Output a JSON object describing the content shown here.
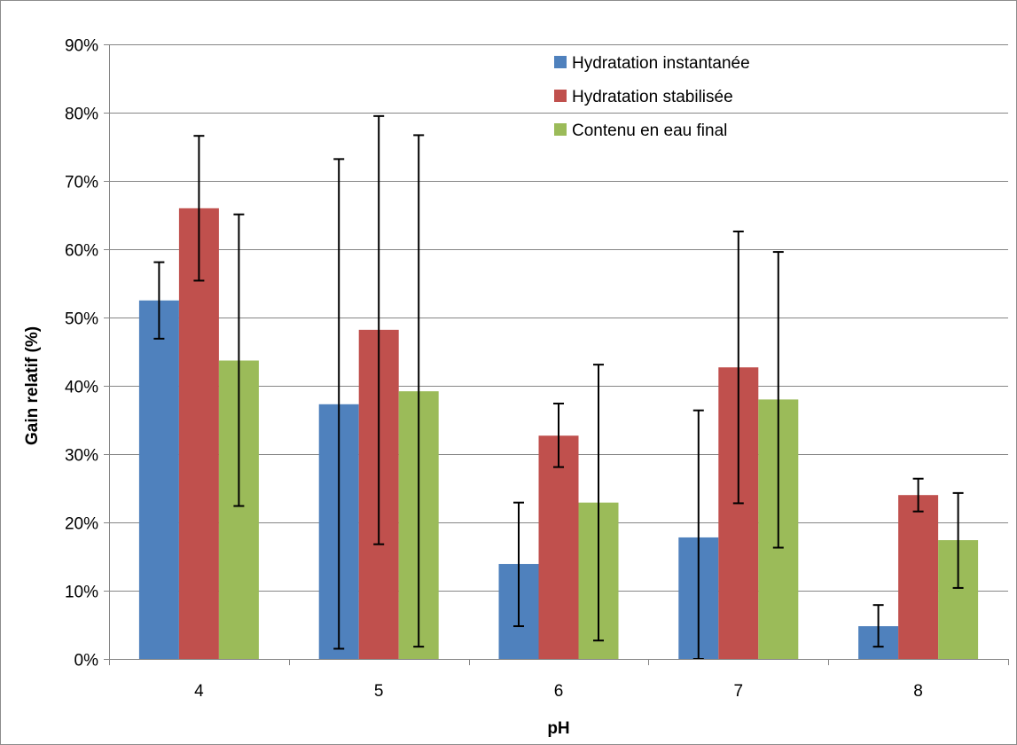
{
  "chart_data": {
    "type": "bar",
    "title": "",
    "xlabel": "pH",
    "ylabel": "Gain relatif (%)",
    "categories": [
      "4",
      "5",
      "6",
      "7",
      "8"
    ],
    "ylim": [
      0,
      0.9
    ],
    "yticks": [
      0,
      0.1,
      0.2,
      0.3,
      0.4,
      0.5,
      0.6,
      0.7,
      0.8,
      0.9
    ],
    "ytick_labels": [
      "0%",
      "10%",
      "20%",
      "30%",
      "40%",
      "50%",
      "60%",
      "70%",
      "80%",
      "90%"
    ],
    "grid": true,
    "legend_position": "top-right",
    "series": [
      {
        "name": "Hydratation instantanée",
        "color": "#4F81BD",
        "values": [
          0.525,
          0.373,
          0.139,
          0.178,
          0.048
        ],
        "error_low": [
          0.469,
          0.015,
          0.048,
          0.0,
          0.018
        ],
        "error_high": [
          0.581,
          0.732,
          0.229,
          0.364,
          0.079
        ]
      },
      {
        "name": "Hydratation stabilisée",
        "color": "#C0504D",
        "values": [
          0.66,
          0.482,
          0.327,
          0.427,
          0.24
        ],
        "error_low": [
          0.554,
          0.168,
          0.281,
          0.228,
          0.216
        ],
        "error_high": [
          0.766,
          0.795,
          0.374,
          0.626,
          0.264
        ]
      },
      {
        "name": "Contenu en eau final",
        "color": "#9BBB59",
        "values": [
          0.437,
          0.392,
          0.229,
          0.38,
          0.174
        ],
        "error_low": [
          0.224,
          0.018,
          0.027,
          0.163,
          0.104
        ],
        "error_high": [
          0.651,
          0.767,
          0.431,
          0.596,
          0.243
        ]
      }
    ]
  }
}
